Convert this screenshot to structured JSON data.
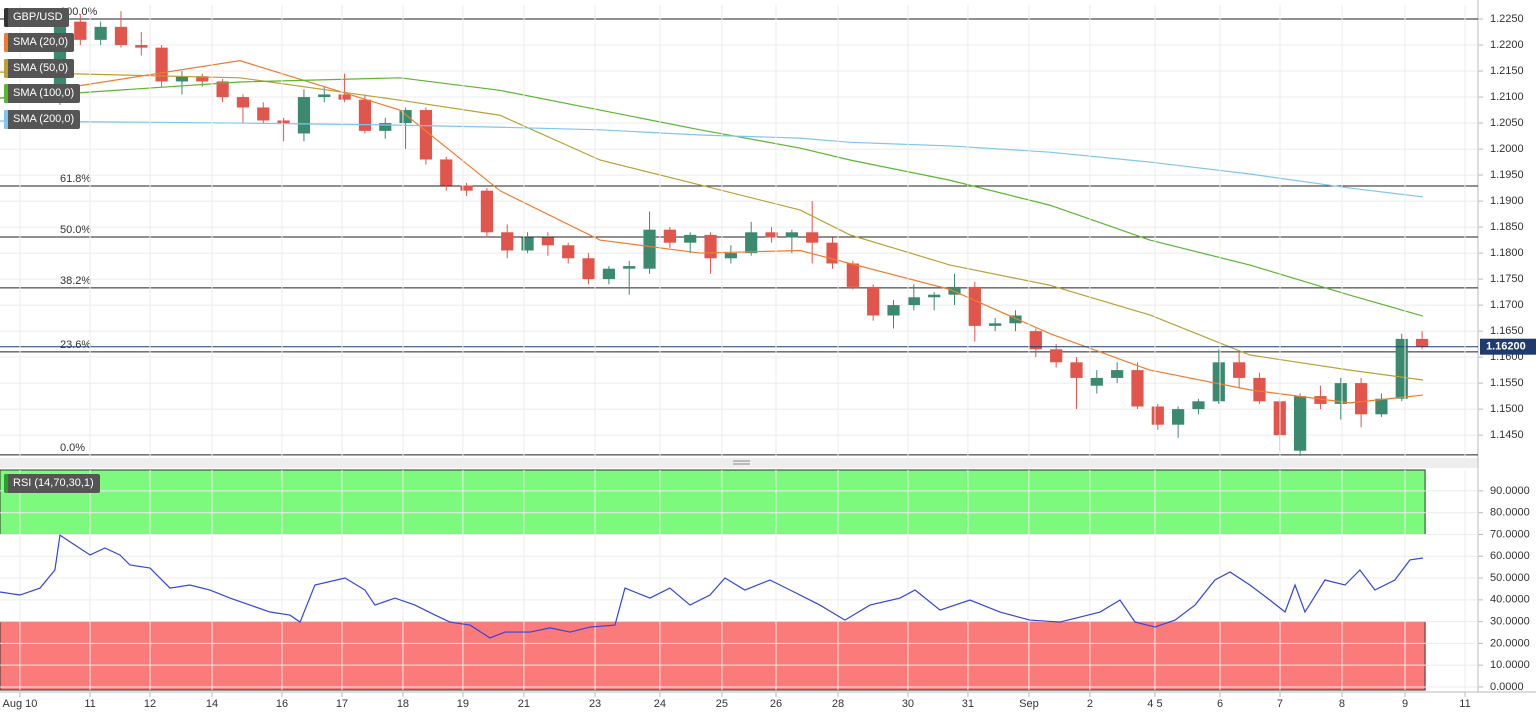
{
  "chart_data": [
    {
      "type": "candlestick",
      "title": "GBP/USD",
      "up_color": "#3b8a70",
      "down_color": "#e0554c",
      "open": [
        1.2095,
        1.2245,
        1.221,
        1.2235,
        1.22,
        1.2195,
        1.213,
        1.214,
        1.213,
        1.21,
        1.208,
        1.2055,
        1.203,
        1.21,
        1.2105,
        1.2095,
        1.2035,
        1.205,
        1.2075,
        1.198,
        1.193,
        1.192,
        1.184,
        1.1805,
        1.183,
        1.1815,
        1.179,
        1.175,
        1.177,
        1.177,
        1.1845,
        1.182,
        1.1835,
        1.179,
        1.18,
        1.184,
        1.183,
        1.184,
        1.182,
        1.178,
        1.1735,
        1.168,
        1.17,
        1.1715,
        1.172,
        1.1735,
        1.166,
        1.1665,
        1.165,
        1.1615,
        1.159,
        1.1545,
        1.156,
        1.1575,
        1.1505,
        1.147,
        1.15,
        1.1515,
        1.159,
        1.156,
        1.1515,
        1.142,
        1.1525,
        1.151,
        1.155,
        1.149,
        1.152,
        1.1635
      ],
      "high": [
        1.227,
        1.226,
        1.2245,
        1.2265,
        1.2225,
        1.22,
        1.215,
        1.2145,
        1.2135,
        1.2105,
        1.209,
        1.206,
        1.2115,
        1.212,
        1.2145,
        1.2105,
        1.206,
        1.208,
        1.208,
        1.1985,
        1.1935,
        1.1925,
        1.1855,
        1.184,
        1.184,
        1.182,
        1.18,
        1.1775,
        1.1785,
        1.188,
        1.185,
        1.184,
        1.184,
        1.1815,
        1.186,
        1.185,
        1.1845,
        1.19,
        1.183,
        1.1785,
        1.174,
        1.171,
        1.174,
        1.1725,
        1.176,
        1.1745,
        1.1675,
        1.169,
        1.1655,
        1.1625,
        1.16,
        1.1575,
        1.159,
        1.159,
        1.151,
        1.1505,
        1.152,
        1.1615,
        1.161,
        1.157,
        1.152,
        1.153,
        1.1545,
        1.156,
        1.156,
        1.153,
        1.1645,
        1.165
      ],
      "low": [
        1.2085,
        1.22,
        1.22,
        1.2195,
        1.218,
        1.212,
        1.2105,
        1.212,
        1.209,
        1.205,
        1.205,
        1.2015,
        1.2015,
        1.209,
        1.209,
        1.203,
        1.202,
        1.2,
        1.197,
        1.192,
        1.191,
        1.183,
        1.179,
        1.18,
        1.1795,
        1.178,
        1.174,
        1.174,
        1.172,
        1.176,
        1.181,
        1.18,
        1.176,
        1.178,
        1.1795,
        1.182,
        1.18,
        1.178,
        1.177,
        1.173,
        1.167,
        1.1655,
        1.169,
        1.169,
        1.17,
        1.163,
        1.165,
        1.165,
        1.16,
        1.158,
        1.15,
        1.153,
        1.155,
        1.15,
        1.146,
        1.1445,
        1.149,
        1.151,
        1.154,
        1.151,
        1.142,
        1.141,
        1.15,
        1.148,
        1.1465,
        1.1485,
        1.1515,
        1.1615
      ],
      "close": [
        1.225,
        1.221,
        1.2235,
        1.22,
        1.2195,
        1.213,
        1.214,
        1.213,
        1.21,
        1.208,
        1.2055,
        1.205,
        1.21,
        1.2105,
        1.2095,
        1.2035,
        1.205,
        1.2075,
        1.198,
        1.193,
        1.192,
        1.184,
        1.1805,
        1.183,
        1.1815,
        1.179,
        1.175,
        1.177,
        1.1775,
        1.1845,
        1.182,
        1.1835,
        1.179,
        1.18,
        1.184,
        1.183,
        1.184,
        1.182,
        1.178,
        1.1735,
        1.168,
        1.17,
        1.1715,
        1.172,
        1.1735,
        1.166,
        1.1665,
        1.168,
        1.1615,
        1.159,
        1.156,
        1.156,
        1.1575,
        1.1505,
        1.147,
        1.15,
        1.1515,
        1.159,
        1.156,
        1.1515,
        1.145,
        1.1525,
        1.151,
        1.155,
        1.149,
        1.152,
        1.1635,
        1.162
      ],
      "series": [
        {
          "name": "SMA (20,0)",
          "color": "#f07d2f",
          "x": [
            -2.95,
            8.85,
            16.72,
            21.64,
            26.56,
            31.48,
            36.4,
            38.86,
            43.78,
            48.7,
            53.61,
            58.53,
            63.45,
            67.04
          ],
          "values": [
            1.2098,
            1.217,
            1.2075,
            1.192,
            1.1825,
            1.18,
            1.1805,
            1.178,
            1.173,
            1.1645,
            1.1575,
            1.1537,
            1.1512,
            1.1527
          ]
        },
        {
          "name": "SMA (50,0)",
          "color": "#b8a233",
          "x": [
            -2.95,
            8.85,
            16.72,
            21.64,
            26.56,
            31.48,
            36.4,
            38.86,
            43.78,
            48.7,
            53.61,
            58.53,
            63.45,
            67.04
          ],
          "values": [
            1.2148,
            1.2137,
            1.2094,
            1.2065,
            1.1979,
            1.1931,
            1.1883,
            1.1835,
            1.1777,
            1.1738,
            1.1681,
            1.1604,
            1.1575,
            1.1556
          ]
        },
        {
          "name": "SMA (100,0)",
          "color": "#5ab72f",
          "x": [
            -2.95,
            8.85,
            16.72,
            21.64,
            26.56,
            31.48,
            36.4,
            38.86,
            43.78,
            48.7,
            53.61,
            58.53,
            63.45,
            67.04
          ],
          "values": [
            1.2098,
            1.2129,
            1.2137,
            1.2113,
            1.2075,
            1.2037,
            1.2002,
            1.1979,
            1.194,
            1.1892,
            1.1825,
            1.1777,
            1.1719,
            1.1679
          ]
        },
        {
          "name": "SMA (200,0)",
          "color": "#7fc6ee",
          "x": [
            -2.95,
            8.85,
            16.72,
            21.64,
            26.56,
            31.48,
            36.4,
            38.86,
            43.78,
            48.7,
            53.61,
            58.53,
            63.45,
            67.04
          ],
          "values": [
            1.2054,
            1.205,
            1.2046,
            1.2042,
            1.2037,
            1.2027,
            1.2021,
            1.2013,
            1.2006,
            1.1994,
            1.1975,
            1.1952,
            1.1925,
            1.1908
          ]
        }
      ],
      "levels": [
        {
          "value": 1.225,
          "label": "100.0%"
        },
        {
          "value": 1.1929,
          "label": "61.8%"
        },
        {
          "value": 1.1831,
          "label": "50.0%"
        },
        {
          "value": 1.1733,
          "label": "38.2%"
        },
        {
          "value": 1.161,
          "label": "23.6%"
        },
        {
          "value": 1.1412,
          "label": "0.0%"
        }
      ],
      "last_price": {
        "value": 1.162,
        "label": "1.16200"
      },
      "xlim": [
        -2.95,
        69.75
      ],
      "ylim": [
        1.1406,
        1.2277
      ],
      "yticks": [
        {
          "value": 1.145,
          "label": "1.1450"
        },
        {
          "value": 1.15,
          "label": "1.1500"
        },
        {
          "value": 1.155,
          "label": "1.1550"
        },
        {
          "value": 1.16,
          "label": "1.1600"
        },
        {
          "value": 1.165,
          "label": "1.1650"
        },
        {
          "value": 1.17,
          "label": "1.1700"
        },
        {
          "value": 1.175,
          "label": "1.1750"
        },
        {
          "value": 1.18,
          "label": "1.1800"
        },
        {
          "value": 1.185,
          "label": "1.1850"
        },
        {
          "value": 1.19,
          "label": "1.1900"
        },
        {
          "value": 1.195,
          "label": "1.1950"
        },
        {
          "value": 1.2,
          "label": "1.2000"
        },
        {
          "value": 1.205,
          "label": "1.2050"
        },
        {
          "value": 1.21,
          "label": "1.2100"
        },
        {
          "value": 1.215,
          "label": "1.2150"
        },
        {
          "value": 1.22,
          "label": "1.2200"
        },
        {
          "value": 1.225,
          "label": "1.2250"
        }
      ],
      "grid": true
    },
    {
      "type": "line",
      "title": "RSI (14,70,30,1)",
      "series": [
        {
          "color": "#3545dd",
          "x": [
            -2.95,
            -1.97,
            -0.98,
            -0.25,
            0,
            0.74,
            1.48,
            2.21,
            2.95,
            3.44,
            4.43,
            5.41,
            6.39,
            7.38,
            8.36,
            9.35,
            10.33,
            11.31,
            11.81,
            12.54,
            14.02,
            15.0,
            15.49,
            16.48,
            17.46,
            18.45,
            19.18,
            20.17,
            21.15,
            21.89,
            23.12,
            24.1,
            25.09,
            26.07,
            27.3,
            27.79,
            29.02,
            30.0,
            30.99,
            31.97,
            32.71,
            33.69,
            34.92,
            35.91,
            37.38,
            38.61,
            39.84,
            41.32,
            42.06,
            43.29,
            44.76,
            46.24,
            47.71,
            49.19,
            51.16,
            52.14,
            52.88,
            53.86,
            54.85,
            55.83,
            56.81,
            57.55,
            58.53,
            59.51,
            60.26,
            60.75,
            61.24,
            62.22,
            63.21,
            63.94,
            64.68,
            65.66,
            66.4,
            67.04
          ],
          "values": [
            43.6,
            42.2,
            45.4,
            53.7,
            69.7,
            65.1,
            60.6,
            63.8,
            60.6,
            56.0,
            54.6,
            45.4,
            46.8,
            44.5,
            40.8,
            37.6,
            34.4,
            33.0,
            29.8,
            46.8,
            50.0,
            44.5,
            37.6,
            40.8,
            37.6,
            33.0,
            29.8,
            28.4,
            22.5,
            25.2,
            25.2,
            27.1,
            25.2,
            27.5,
            28.4,
            45.4,
            40.8,
            45.4,
            37.6,
            42.2,
            50.0,
            44.5,
            49.1,
            44.5,
            37.6,
            30.7,
            37.6,
            40.8,
            44.5,
            35.3,
            39.9,
            34.4,
            30.7,
            29.8,
            34.4,
            39.9,
            29.8,
            27.5,
            30.7,
            37.6,
            49.1,
            52.8,
            46.8,
            39.9,
            34.4,
            46.8,
            34.4,
            49.1,
            46.8,
            53.7,
            44.5,
            49.1,
            58.3,
            59.2
          ]
        }
      ],
      "overbought": 70,
      "oversold": 30,
      "overbought_color": "#7dfa7d",
      "oversold_color": "#fb7a7a",
      "xlim": [
        -2.95,
        69.75
      ],
      "ylim": [
        -1.4,
        99.6
      ],
      "yticks": [
        {
          "value": 0,
          "label": "0.0000"
        },
        {
          "value": 10,
          "label": "10.0000"
        },
        {
          "value": 20,
          "label": "20.0000"
        },
        {
          "value": 30,
          "label": "30.0000"
        },
        {
          "value": 40,
          "label": "40.0000"
        },
        {
          "value": 50,
          "label": "50.0000"
        },
        {
          "value": 60,
          "label": "60.0000"
        },
        {
          "value": 70,
          "label": "70.0000"
        },
        {
          "value": 80,
          "label": "80.0000"
        },
        {
          "value": 90,
          "label": "90.0000"
        }
      ],
      "xticks": [
        {
          "value": -1.97,
          "label": "Aug 10"
        },
        {
          "value": 1.48,
          "label": "11"
        },
        {
          "value": 4.43,
          "label": "12"
        },
        {
          "value": 7.48,
          "label": "14"
        },
        {
          "value": 10.92,
          "label": "16"
        },
        {
          "value": 13.87,
          "label": "17"
        },
        {
          "value": 16.87,
          "label": "18"
        },
        {
          "value": 19.82,
          "label": "19"
        },
        {
          "value": 22.82,
          "label": "21"
        },
        {
          "value": 26.32,
          "label": "23"
        },
        {
          "value": 29.51,
          "label": "24"
        },
        {
          "value": 32.56,
          "label": "25"
        },
        {
          "value": 35.22,
          "label": "26"
        },
        {
          "value": 38.27,
          "label": "28"
        },
        {
          "value": 41.71,
          "label": "30"
        },
        {
          "value": 44.66,
          "label": "31"
        },
        {
          "value": 47.66,
          "label": "Sep"
        },
        {
          "value": 50.66,
          "label": "2"
        },
        {
          "value": 53.86,
          "label": "4 5"
        },
        {
          "value": 57.06,
          "label": "6"
        },
        {
          "value": 60.01,
          "label": "7"
        },
        {
          "value": 63.06,
          "label": "8"
        },
        {
          "value": 66.16,
          "label": "9"
        },
        {
          "value": 69.11,
          "label": "11"
        }
      ],
      "grid": true
    }
  ]
}
